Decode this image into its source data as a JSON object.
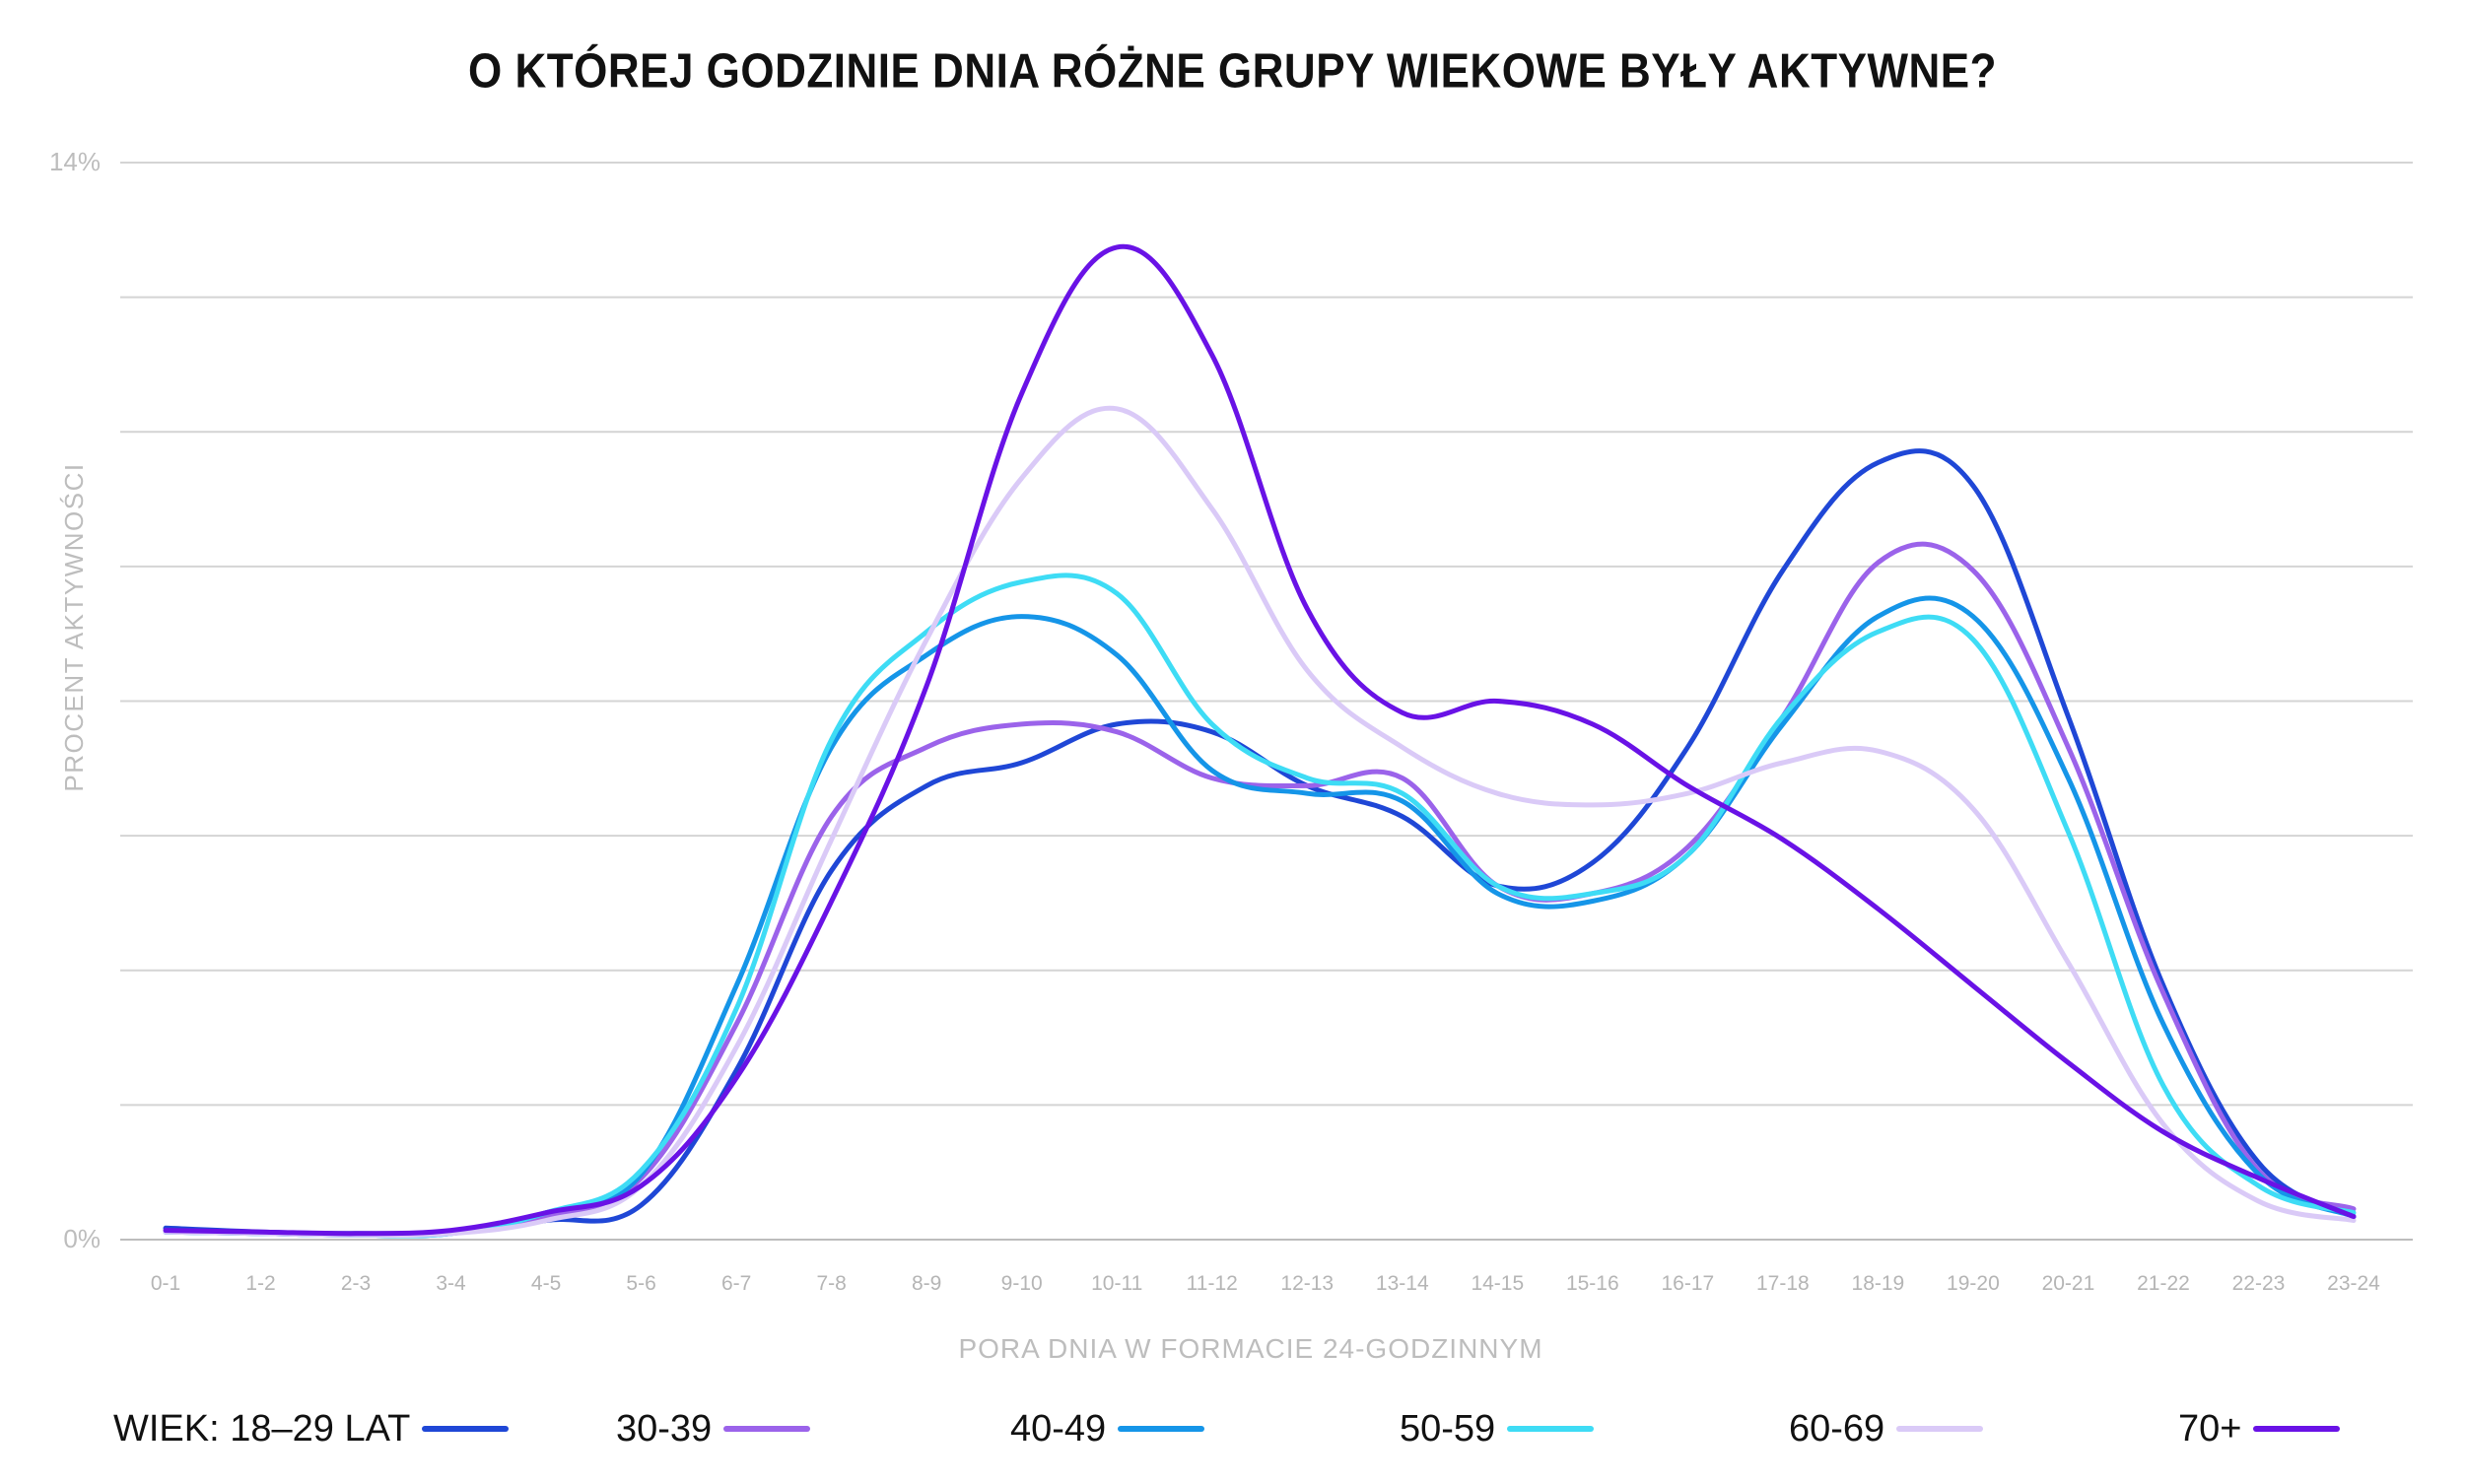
{
  "title": "O KTÓREJ GODZINIE DNIA RÓŻNE GRUPY WIEKOWE BYŁY AKTYWNE?",
  "chart_data": {
    "type": "line",
    "title": "O KTÓREJ GODZINIE DNIA RÓŻNE GRUPY WIEKOWE BYŁY AKTYWNE?",
    "xlabel": "PORA DNIA W FORMACIE 24-GODZINNYM",
    "ylabel": "PROCENT AKTYWNOŚCI",
    "ylim": [
      0,
      14
    ],
    "y_tick_labels": [
      "0%",
      "14%"
    ],
    "grid": true,
    "legend_position": "bottom",
    "legend_title": "WIEK:",
    "categories": [
      "0-1",
      "1-2",
      "2-3",
      "3-4",
      "4-5",
      "5-6",
      "6-7",
      "7-8",
      "8-9",
      "9-10",
      "10-11",
      "11-12",
      "12-13",
      "13-14",
      "14-15",
      "15-16",
      "16-17",
      "17-18",
      "18-19",
      "19-20",
      "20-21",
      "21-22",
      "22-23",
      "23-24"
    ],
    "series": [
      {
        "name": "18–29 LAT",
        "color": "#1f47d6",
        "values": [
          0.15,
          0.1,
          0.08,
          0.1,
          0.25,
          0.45,
          2.2,
          4.8,
          5.9,
          6.2,
          6.7,
          6.6,
          5.9,
          5.5,
          4.6,
          4.9,
          6.4,
          8.7,
          10.1,
          9.8,
          6.8,
          3.3,
          1.0,
          0.3
        ]
      },
      {
        "name": "30-39",
        "color": "#9b63ea",
        "values": [
          0.1,
          0.08,
          0.06,
          0.08,
          0.3,
          0.8,
          2.8,
          5.5,
          6.4,
          6.7,
          6.6,
          6.0,
          5.9,
          6.0,
          4.6,
          4.5,
          5.1,
          6.8,
          8.8,
          8.7,
          6.4,
          3.2,
          0.9,
          0.4
        ]
      },
      {
        "name": "40-49",
        "color": "#1595e8",
        "values": [
          0.1,
          0.08,
          0.06,
          0.08,
          0.35,
          0.85,
          3.3,
          6.4,
          7.6,
          8.1,
          7.6,
          6.1,
          5.8,
          5.7,
          4.5,
          4.4,
          5.0,
          6.7,
          8.1,
          8.1,
          6.0,
          2.8,
          0.85,
          0.3
        ]
      },
      {
        "name": "50-59",
        "color": "#3edcf5",
        "values": [
          0.1,
          0.08,
          0.06,
          0.08,
          0.35,
          0.9,
          3.0,
          6.5,
          7.9,
          8.55,
          8.4,
          6.7,
          6.0,
          5.8,
          4.6,
          4.5,
          5.0,
          6.8,
          7.9,
          7.8,
          5.3,
          2.0,
          0.7,
          0.35
        ]
      },
      {
        "name": "60-69",
        "color": "#dacaf7",
        "values": [
          0.1,
          0.08,
          0.06,
          0.08,
          0.25,
          0.7,
          2.5,
          5.2,
          7.8,
          9.9,
          10.8,
          9.5,
          7.4,
          6.4,
          5.8,
          5.65,
          5.8,
          6.2,
          6.35,
          5.6,
          3.6,
          1.5,
          0.5,
          0.25
        ]
      },
      {
        "name": "70+",
        "color": "#6912e6",
        "values": [
          0.12,
          0.1,
          0.08,
          0.12,
          0.35,
          0.7,
          2.1,
          4.4,
          7.2,
          11.0,
          12.9,
          11.5,
          8.2,
          6.85,
          7.0,
          6.7,
          5.9,
          5.2,
          4.3,
          3.3,
          2.3,
          1.4,
          0.8,
          0.3
        ]
      }
    ]
  }
}
